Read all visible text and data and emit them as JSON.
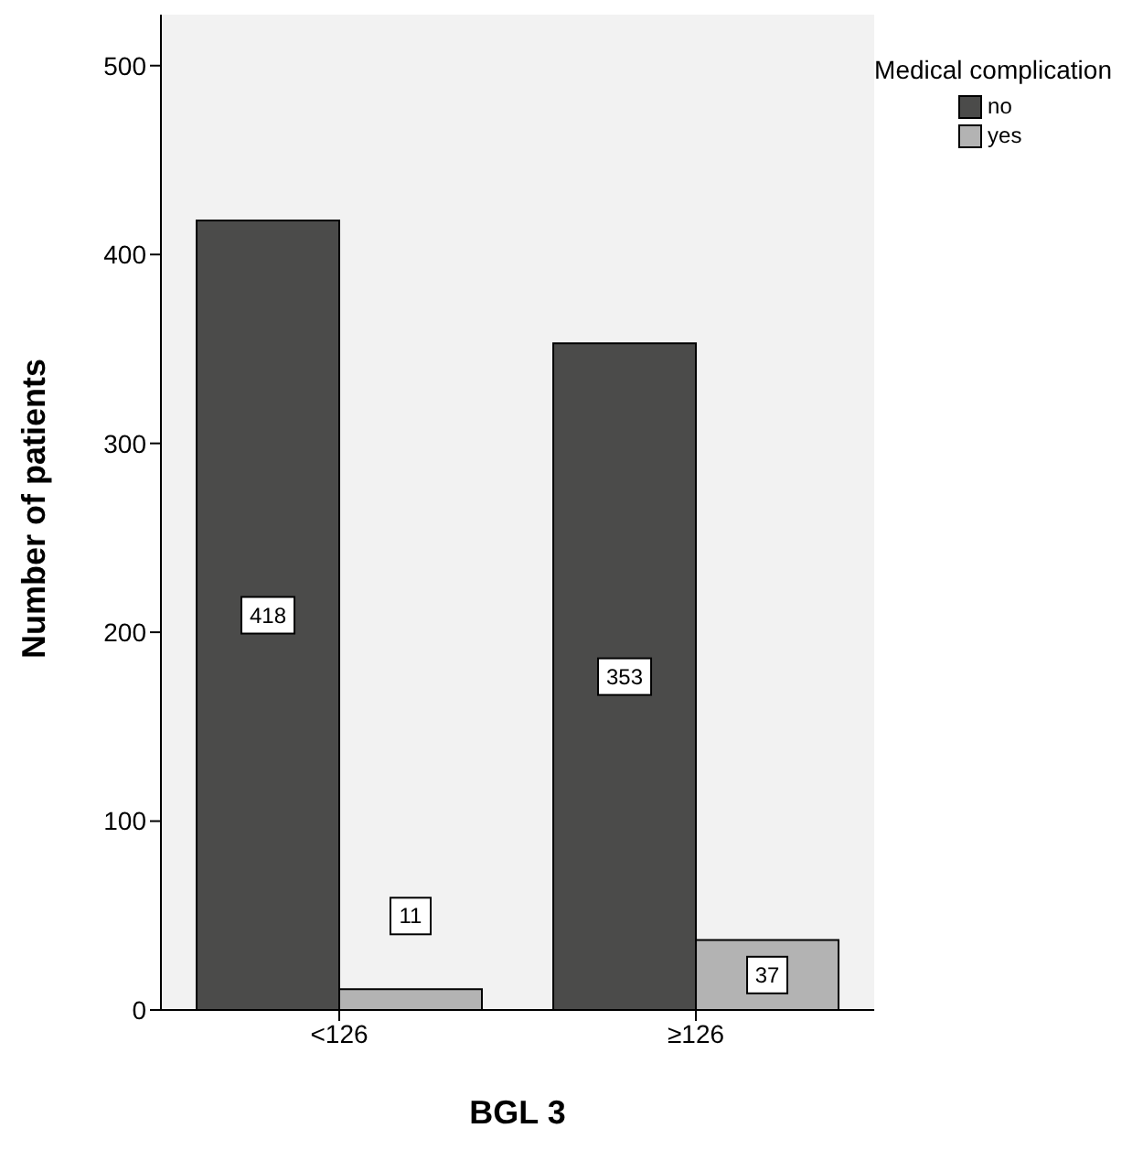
{
  "chart_data": {
    "type": "bar",
    "xlabel": "BGL 3",
    "ylabel": "Number of patients",
    "legend_title": "Medical complication",
    "categories": [
      "<126",
      "≥126"
    ],
    "series": [
      {
        "name": "no",
        "color": "#4b4b4a",
        "values": [
          418,
          353
        ]
      },
      {
        "name": "yes",
        "color": "#b3b3b3",
        "values": [
          11,
          37
        ]
      }
    ],
    "ylim": [
      0,
      527
    ],
    "yticks": [
      0,
      100,
      200,
      300,
      400,
      500
    ],
    "grid": false,
    "legend": "top right",
    "data_labels": true
  }
}
